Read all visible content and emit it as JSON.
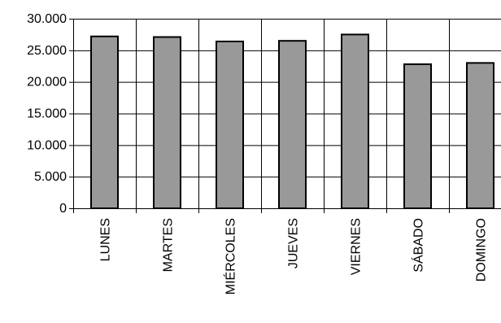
{
  "chart_data": {
    "type": "bar",
    "title": "",
    "xlabel": "",
    "ylabel": "",
    "categories": [
      "LUNES",
      "MARTES",
      "MIÉRCOLES",
      "JUEVES",
      "VIERNES",
      "SÁBADO",
      "DOMINGO"
    ],
    "values": [
      27200,
      27100,
      26400,
      26500,
      27500,
      22800,
      23000
    ],
    "ylim": [
      0,
      30000
    ],
    "yticks": [
      0,
      5000,
      10000,
      15000,
      20000,
      25000,
      30000
    ],
    "ytick_labels": [
      "0",
      "5.000",
      "10.000",
      "15.000",
      "20.000",
      "25.000",
      "30.000"
    ],
    "grid": true,
    "legend": "none",
    "colors": {
      "bar_fill": "#999999",
      "bar_stroke": "#000000",
      "grid": "#000000"
    }
  }
}
